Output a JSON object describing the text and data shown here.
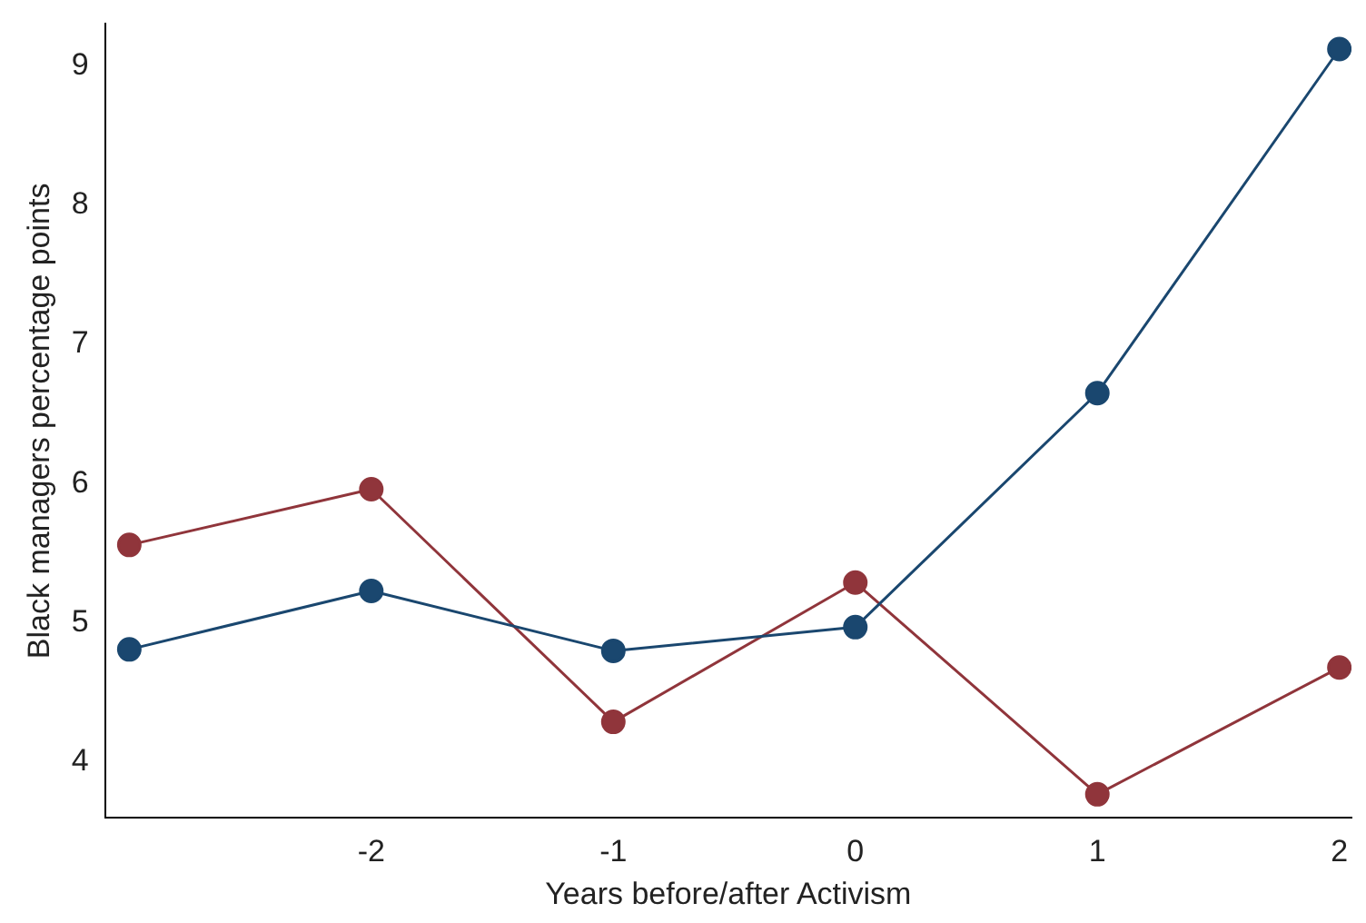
{
  "chart_data": {
    "type": "line",
    "xlabel": "Years before/after Activism",
    "ylabel": "Black managers percentage points",
    "x": [
      -3,
      -2,
      -1,
      0,
      1,
      2
    ],
    "series": [
      {
        "color": "#1a476f",
        "values": [
          4.81,
          5.23,
          4.8,
          4.97,
          6.65,
          9.12
        ]
      },
      {
        "color": "#90353b",
        "values": [
          5.56,
          5.96,
          4.29,
          5.29,
          3.77,
          4.68
        ]
      }
    ],
    "xlim": [
      -3.1,
      2.05
    ],
    "xticks": [
      -2,
      -1,
      0,
      1,
      2
    ],
    "ylim": [
      3.6,
      9.3
    ],
    "yticks": [
      4,
      5,
      6,
      7,
      8,
      9
    ],
    "grid": false,
    "legend": false,
    "marker": "circle",
    "line_style": "solid"
  }
}
